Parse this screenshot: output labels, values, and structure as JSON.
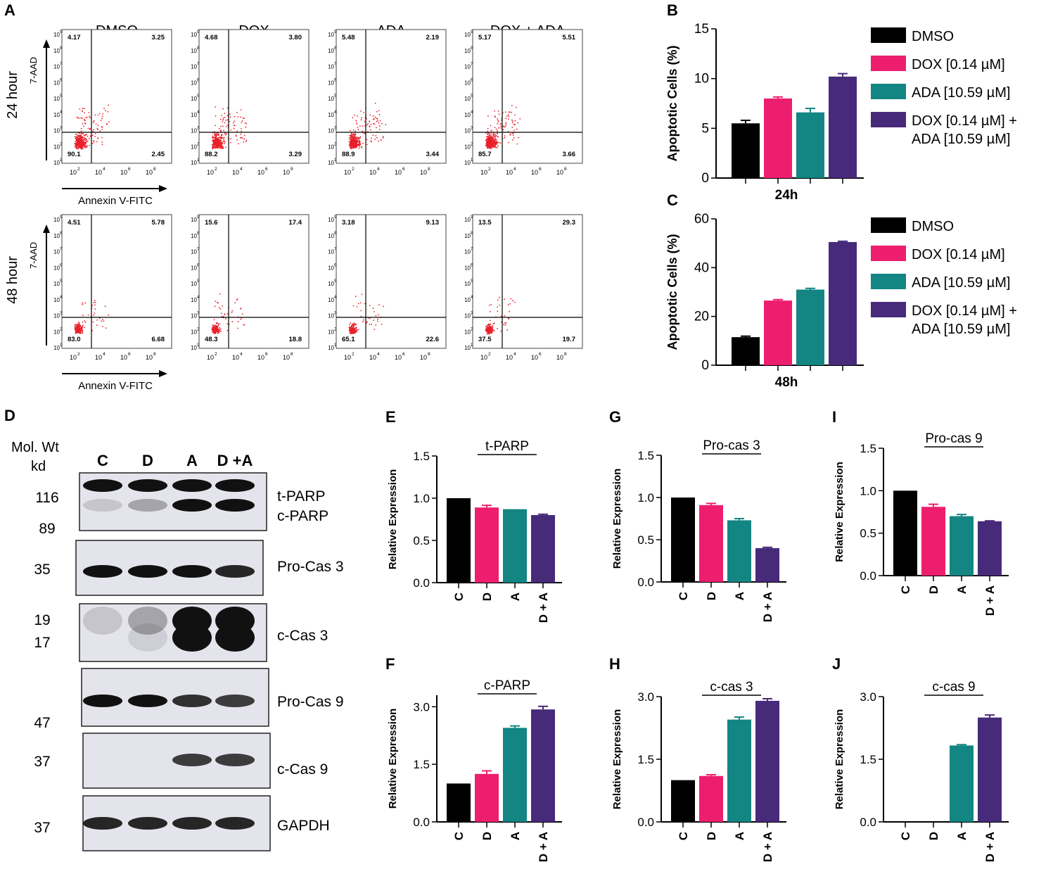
{
  "panels": {
    "A": "A",
    "B": "B",
    "C": "C",
    "D": "D",
    "E": "E",
    "F": "F",
    "G": "G",
    "H": "H",
    "I": "I",
    "J": "J"
  },
  "colors": {
    "C": "#000000",
    "D": "#ee1e6e",
    "A": "#138582",
    "DA": "#472a7a",
    "dots": "#e8202a"
  },
  "flow": {
    "conditions": [
      "DMSO",
      "DOX",
      "ADA",
      "DOX + ADA"
    ],
    "rows": [
      "24 hour",
      "48 hour"
    ],
    "y_axis_label": "7-AAD",
    "x_axis_label": "Annexin V-FITC",
    "x_ticks": [
      "10",
      "10",
      "10",
      "10"
    ],
    "x_tick_exps": [
      "2",
      "4",
      "6",
      "8"
    ],
    "y_ticks": [
      "10",
      "10",
      "10",
      "10",
      "10",
      "10",
      "10",
      "10",
      "10"
    ],
    "y_tick_exps": [
      "9",
      "8",
      "7",
      "6",
      "5",
      "4",
      "3",
      "2",
      "1"
    ],
    "quadrants": [
      [
        [
          "4.17",
          "3.25",
          "90.1",
          "2.45"
        ],
        [
          "4.68",
          "3.80",
          "88.2",
          "3.29"
        ],
        [
          "5.48",
          "2.19",
          "88.9",
          "3.44"
        ],
        [
          "5.17",
          "5.51",
          "85.7",
          "3.66"
        ]
      ],
      [
        [
          "4.51",
          "5.78",
          "83.0",
          "6.68"
        ],
        [
          "15.6",
          "17.4",
          "48.3",
          "18.8"
        ],
        [
          "3.18",
          "9.13",
          "65.1",
          "22.6"
        ],
        [
          "13.5",
          "29.3",
          "37.5",
          "19.7"
        ]
      ]
    ]
  },
  "legend": [
    "DMSO",
    "DOX [0.14 µM]",
    "ADA [10.59 µM]",
    "DOX [0.14 µM] +",
    "ADA [10.59 µM]"
  ],
  "western": {
    "header_line1": "Mol. Wt",
    "header_line2": "kd",
    "lanes": [
      "C",
      "D",
      "A",
      "D +A"
    ],
    "weights": [
      "116",
      "89",
      "35",
      "19",
      "17",
      "47",
      "37",
      "37"
    ],
    "labels": [
      "t-PARP",
      "c-PARP",
      "Pro-Cas 3",
      "c-Cas 3",
      "Pro-Cas 9",
      "c-Cas 9",
      "GAPDH"
    ]
  },
  "chart_data": [
    {
      "id": "B",
      "type": "bar",
      "title": "",
      "xlabel": "24h",
      "ylabel": "Apoptotic Cells (%)",
      "categories": [
        "DMSO",
        "DOX [0.14 µM]",
        "ADA [10.59 µM]",
        "DOX [0.14 µM] + ADA [10.59 µM]"
      ],
      "values": [
        5.5,
        8.0,
        6.6,
        10.2
      ],
      "errors": [
        0.3,
        0.15,
        0.4,
        0.3
      ],
      "ylim": [
        0,
        15
      ],
      "yticks": [
        "0",
        "5",
        "10",
        "15"
      ],
      "yticks_values": [
        0,
        5,
        10,
        15
      ]
    },
    {
      "id": "C",
      "type": "bar",
      "title": "",
      "xlabel": "48h",
      "ylabel": "Apoptotic Cells (%)",
      "categories": [
        "DMSO",
        "DOX [0.14 µM]",
        "ADA [10.59 µM]",
        "DOX [0.14 µM] + ADA [10.59 µM]"
      ],
      "values": [
        11.5,
        26.5,
        31.0,
        50.5
      ],
      "errors": [
        0.4,
        0.4,
        0.5,
        0.3
      ],
      "ylim": [
        0,
        60
      ],
      "yticks": [
        "0",
        "20",
        "40",
        "60"
      ],
      "yticks_values": [
        0,
        20,
        40,
        60
      ]
    },
    {
      "id": "E",
      "type": "bar",
      "title": "t-PARP",
      "xlabel": "",
      "ylabel": "Relative Expression",
      "categories": [
        "C",
        "D",
        "A",
        "D + A"
      ],
      "values": [
        1.0,
        0.89,
        0.87,
        0.8
      ],
      "errors": [
        0,
        0.025,
        0,
        0.01
      ],
      "ylim": [
        0,
        1.5
      ],
      "yticks": [
        "0.0",
        "0.5",
        "1.0",
        "1.5"
      ],
      "yticks_values": [
        0,
        0.5,
        1.0,
        1.5
      ]
    },
    {
      "id": "F",
      "type": "bar",
      "title": "c-PARP",
      "xlabel": "",
      "ylabel": "Relative Expression",
      "categories": [
        "C",
        "D",
        "A",
        "D + A"
      ],
      "values": [
        1.0,
        1.25,
        2.45,
        2.93
      ],
      "errors": [
        0,
        0.08,
        0.05,
        0.08
      ],
      "ylim": [
        0,
        3.3
      ],
      "yticks": [
        "0.0",
        "1.5",
        "3.0"
      ],
      "yticks_values": [
        0,
        1.5,
        3.0
      ]
    },
    {
      "id": "G",
      "type": "bar",
      "title": "Pro-cas 3",
      "xlabel": "",
      "ylabel": "Relative Expression",
      "categories": [
        "C",
        "D",
        "A",
        "D + A"
      ],
      "values": [
        1.0,
        0.91,
        0.73,
        0.4
      ],
      "errors": [
        0,
        0.02,
        0.02,
        0.01
      ],
      "ylim": [
        0,
        1.5
      ],
      "yticks": [
        "0.0",
        "0.5",
        "1.0",
        "1.5"
      ],
      "yticks_values": [
        0,
        0.5,
        1.0,
        1.5
      ]
    },
    {
      "id": "H",
      "type": "bar",
      "title": "c-cas 3",
      "xlabel": "",
      "ylabel": "Relative Expression",
      "categories": [
        "C",
        "D",
        "A",
        "D + A"
      ],
      "values": [
        1.0,
        1.1,
        2.45,
        2.9
      ],
      "errors": [
        0,
        0.03,
        0.06,
        0.05
      ],
      "ylim": [
        0,
        3.0
      ],
      "yticks": [
        "0.0",
        "1.5",
        "3.0"
      ],
      "yticks_values": [
        0,
        1.5,
        3.0
      ]
    },
    {
      "id": "I",
      "type": "bar",
      "title": "Pro-cas 9",
      "xlabel": "",
      "ylabel": "Relative Expression",
      "categories": [
        "C",
        "D",
        "A",
        "D + A"
      ],
      "values": [
        1.0,
        0.81,
        0.7,
        0.64
      ],
      "errors": [
        0,
        0.03,
        0.02,
        0.005
      ],
      "ylim": [
        0,
        1.5
      ],
      "yticks": [
        "0.0",
        "0.5",
        "1.0",
        "1.5"
      ],
      "yticks_values": [
        0,
        0.5,
        1.0,
        1.5
      ]
    },
    {
      "id": "J",
      "type": "bar",
      "title": "c-cas 9",
      "xlabel": "",
      "ylabel": "Relative Expression",
      "categories": [
        "C",
        "D",
        "A",
        "D + A"
      ],
      "values": [
        0,
        0,
        1.83,
        2.5
      ],
      "errors": [
        0,
        0,
        0.02,
        0.06
      ],
      "ylim": [
        0,
        3.0
      ],
      "yticks": [
        "0.0",
        "1.5",
        "3.0"
      ],
      "yticks_values": [
        0,
        1.5,
        3.0
      ]
    }
  ]
}
